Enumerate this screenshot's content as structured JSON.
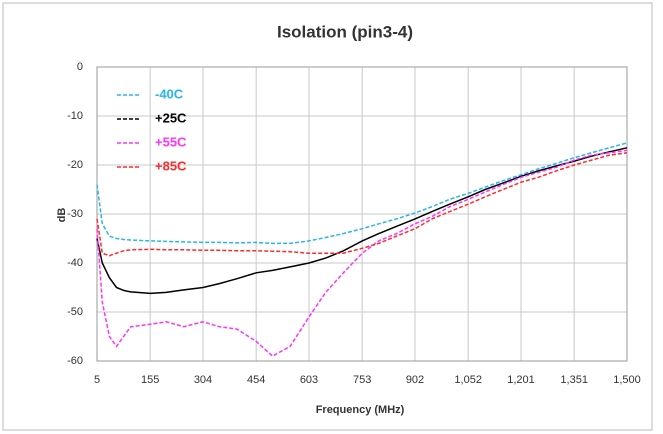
{
  "chart_data": {
    "type": "line",
    "title": "Isolation (pin3-4)",
    "xlabel": "Frequency (MHz)",
    "ylabel": "dB",
    "x": [
      5,
      20,
      40,
      60,
      80,
      100,
      155,
      200,
      250,
      304,
      350,
      400,
      454,
      500,
      550,
      603,
      650,
      700,
      753,
      800,
      850,
      902,
      950,
      1000,
      1052,
      1100,
      1150,
      1201,
      1250,
      1300,
      1351,
      1400,
      1450,
      1500
    ],
    "series": [
      {
        "name": "-40C",
        "color": "#29b5e8",
        "dashed": true,
        "values": [
          -24,
          -32,
          -34.5,
          -35,
          -35.2,
          -35.3,
          -35.5,
          -35.6,
          -35.7,
          -35.8,
          -35.8,
          -35.9,
          -35.8,
          -36,
          -36,
          -35.5,
          -34.8,
          -34,
          -33,
          -32,
          -31,
          -29.8,
          -28.5,
          -27,
          -25.8,
          -24.5,
          -23.2,
          -22,
          -20.8,
          -19.7,
          -18.5,
          -17.5,
          -16.5,
          -15.5
        ]
      },
      {
        "name": "+25C",
        "color": "#000000",
        "dashed": false,
        "values": [
          -35,
          -40,
          -43,
          -45,
          -45.6,
          -45.9,
          -46.2,
          -46,
          -45.5,
          -45,
          -44.2,
          -43.2,
          -42,
          -41.5,
          -40.8,
          -40,
          -39,
          -37.5,
          -35.5,
          -34,
          -32.5,
          -31,
          -29.5,
          -28,
          -26.5,
          -25,
          -23.7,
          -22.3,
          -21.2,
          -20.2,
          -19.2,
          -18.2,
          -17.3,
          -16.5
        ]
      },
      {
        "name": "+55C",
        "color": "#ff33ff",
        "dashed": true,
        "values": [
          -33,
          -48,
          -55,
          -57,
          -55,
          -53,
          -52.5,
          -52,
          -53,
          -52,
          -53,
          -53.5,
          -56,
          -59,
          -57,
          -51,
          -46,
          -42,
          -38,
          -35.5,
          -34,
          -32,
          -30.5,
          -28.5,
          -27,
          -25.5,
          -24,
          -22.5,
          -21.5,
          -20.5,
          -19,
          -18,
          -17.5,
          -17
        ]
      },
      {
        "name": "+85C",
        "color": "#ff2a2a",
        "dashed": true,
        "values": [
          -31,
          -38,
          -38.5,
          -38,
          -37.5,
          -37.3,
          -37.2,
          -37.3,
          -37.3,
          -37.4,
          -37.4,
          -37.5,
          -37.5,
          -37.6,
          -37.7,
          -38,
          -38,
          -38,
          -37,
          -36,
          -34.5,
          -33,
          -31,
          -29.5,
          -28,
          -26.5,
          -25,
          -23.5,
          -22.5,
          -21.2,
          -20,
          -19,
          -18,
          -17.5
        ]
      }
    ],
    "xlim": [
      5,
      1500
    ],
    "ylim": [
      -60,
      0
    ],
    "xticks": [
      5,
      155,
      304,
      454,
      603,
      753,
      902,
      {
        "value": 1052,
        "label": "1,052"
      },
      {
        "value": 1201,
        "label": "1,201"
      },
      {
        "value": 1351,
        "label": "1,351"
      },
      {
        "value": 1500,
        "label": "1,500"
      }
    ],
    "yticks": [
      -60,
      -50,
      -40,
      -30,
      -20,
      -10,
      0
    ],
    "grid": true
  }
}
